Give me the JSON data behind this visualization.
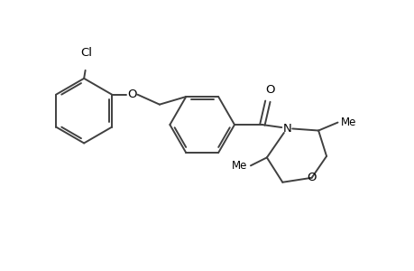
{
  "background_color": "#ffffff",
  "line_color": "#404040",
  "text_color": "#000000",
  "line_width": 1.4,
  "figsize": [
    4.6,
    3.0
  ],
  "dpi": 100,
  "xlim": [
    0,
    9.2
  ],
  "ylim": [
    0,
    6.0
  ]
}
